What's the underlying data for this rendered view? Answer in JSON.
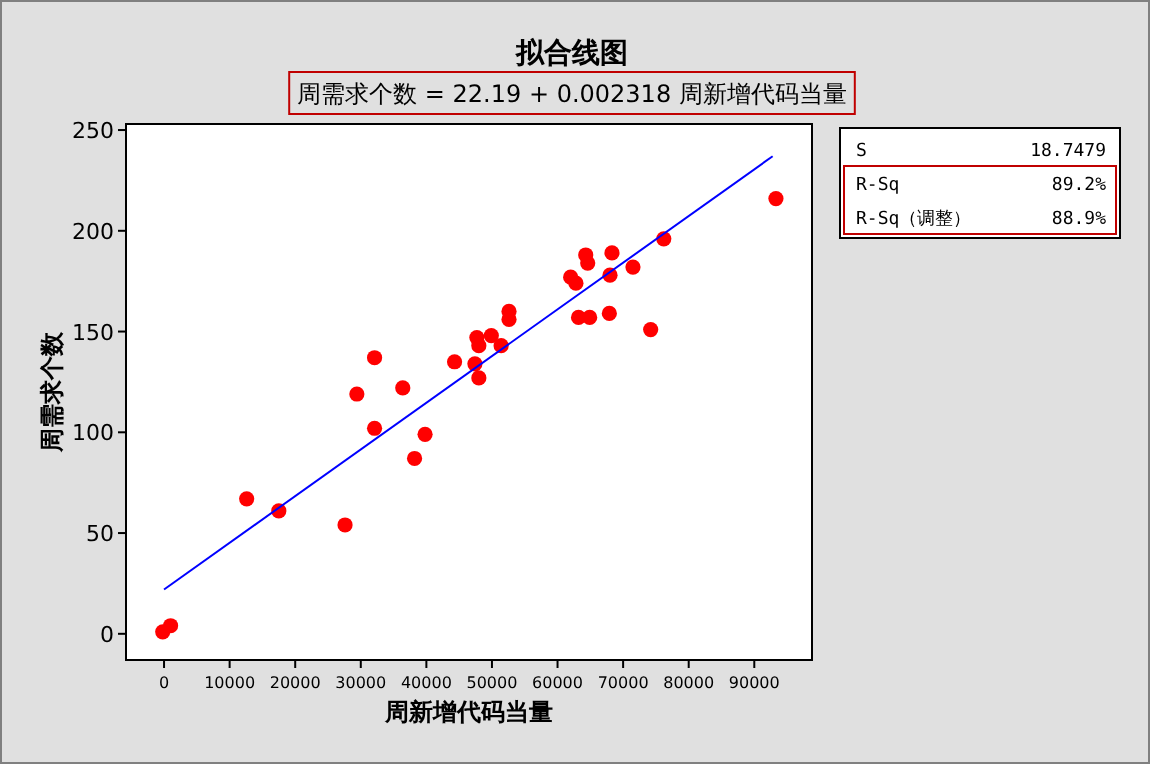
{
  "chart_data": {
    "type": "scatter",
    "title": "拟合线图",
    "subtitle": "周需求个数 =   22.19 + 0.002318 周新增代码当量",
    "xlabel": "周新增代码当量",
    "ylabel": "周需求个数",
    "annotations": [
      "S",
      "18.7479",
      "R-Sq",
      "89.2%",
      "R-Sq（调整）",
      "88.9%"
    ],
    "xlim": [
      -5800,
      98800
    ],
    "ylim": [
      -13,
      253
    ],
    "xticks": [
      0,
      10000,
      20000,
      30000,
      40000,
      50000,
      60000,
      70000,
      80000,
      90000
    ],
    "yticks": [
      0,
      50,
      100,
      150,
      200,
      250
    ],
    "grid": false,
    "series": [
      {
        "marker": "circle",
        "color": "#ff0000",
        "x": [
          -200,
          1000,
          12600,
          17500,
          27600,
          29400,
          32100,
          32100,
          36400,
          38200,
          39800,
          44300,
          47400,
          47700,
          48000,
          48000,
          49900,
          51400,
          52600,
          52600,
          62000,
          62800,
          63200,
          64300,
          64600,
          64900,
          67900,
          68000,
          68300,
          71500,
          74200,
          76200,
          93300
        ],
        "values": [
          1,
          4,
          67,
          61,
          54,
          119,
          137,
          102,
          122,
          87,
          99,
          135,
          134,
          147,
          143,
          127,
          148,
          143,
          160,
          156,
          177,
          174,
          157,
          188,
          184,
          157,
          159,
          178,
          189,
          182,
          151,
          196,
          216
        ]
      },
      {
        "type": "line",
        "color": "#0000ff",
        "x": [
          0,
          92800
        ],
        "values": [
          22,
          237
        ]
      }
    ]
  }
}
